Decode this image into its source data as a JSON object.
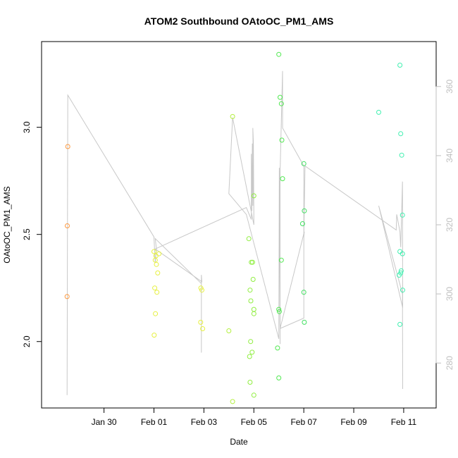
{
  "chart_data": {
    "type": "scatter",
    "title": "ATOM2 Southbound OAtoOC_PM1_AMS",
    "xlabel": "Date",
    "ylabel": "OAtoOC_PM1_AMS",
    "x_unit": "days",
    "xlim": [
      27.5,
      43.3
    ],
    "ylim": [
      1.69,
      3.4
    ],
    "x_ticks": [
      {
        "value": 30,
        "label": "Jan 30"
      },
      {
        "value": 32,
        "label": "Feb 01"
      },
      {
        "value": 34,
        "label": "Feb 03"
      },
      {
        "value": 36,
        "label": "Feb 05"
      },
      {
        "value": 38,
        "label": "Feb 07"
      },
      {
        "value": 40,
        "label": "Feb 09"
      },
      {
        "value": 42,
        "label": "Feb 11"
      }
    ],
    "y_ticks": [
      {
        "value": 2.0,
        "label": "2.0"
      },
      {
        "value": 2.5,
        "label": "2.5"
      },
      {
        "value": 3.0,
        "label": "3.0"
      }
    ],
    "right_axis": {
      "ylim": [
        267,
        373
      ],
      "ticks": [
        {
          "value": 280,
          "label": "280"
        },
        {
          "value": 300,
          "label": "300"
        },
        {
          "value": 320,
          "label": "320"
        },
        {
          "value": 340,
          "label": "340"
        },
        {
          "value": 360,
          "label": "360"
        }
      ],
      "color": "#bfbfbf"
    },
    "grid": false,
    "legend": "none",
    "points": [
      {
        "x": 28.55,
        "y": 2.91,
        "color": "#ff9a40"
      },
      {
        "x": 28.53,
        "y": 2.54,
        "color": "#ff9a40"
      },
      {
        "x": 28.52,
        "y": 2.21,
        "color": "#ff9a40"
      },
      {
        "x": 32.0,
        "y": 2.42,
        "color": "#e6f040"
      },
      {
        "x": 32.05,
        "y": 2.38,
        "color": "#e6f040"
      },
      {
        "x": 32.1,
        "y": 2.36,
        "color": "#e6f040"
      },
      {
        "x": 32.15,
        "y": 2.32,
        "color": "#e6f040"
      },
      {
        "x": 32.08,
        "y": 2.4,
        "color": "#e6f040"
      },
      {
        "x": 32.2,
        "y": 2.41,
        "color": "#e6f040"
      },
      {
        "x": 32.03,
        "y": 2.25,
        "color": "#e6f040"
      },
      {
        "x": 32.12,
        "y": 2.23,
        "color": "#e6f040"
      },
      {
        "x": 32.06,
        "y": 2.13,
        "color": "#e6f040"
      },
      {
        "x": 32.01,
        "y": 2.03,
        "color": "#e6f040"
      },
      {
        "x": 33.88,
        "y": 2.25,
        "color": "#e6f040"
      },
      {
        "x": 33.92,
        "y": 2.24,
        "color": "#e6f040"
      },
      {
        "x": 33.87,
        "y": 2.09,
        "color": "#e6f040"
      },
      {
        "x": 33.95,
        "y": 2.06,
        "color": "#e6f040"
      },
      {
        "x": 35.0,
        "y": 2.05,
        "color": "#b4f040"
      },
      {
        "x": 35.15,
        "y": 3.05,
        "color": "#b4f040"
      },
      {
        "x": 35.15,
        "y": 1.72,
        "color": "#b4f040"
      },
      {
        "x": 35.8,
        "y": 2.48,
        "color": "#90ee40"
      },
      {
        "x": 35.85,
        "y": 2.24,
        "color": "#90ee40"
      },
      {
        "x": 35.88,
        "y": 2.19,
        "color": "#90ee40"
      },
      {
        "x": 35.9,
        "y": 2.37,
        "color": "#90ee40"
      },
      {
        "x": 35.95,
        "y": 2.37,
        "color": "#90ee40"
      },
      {
        "x": 35.97,
        "y": 2.29,
        "color": "#90ee40"
      },
      {
        "x": 36.0,
        "y": 2.15,
        "color": "#90ee40"
      },
      {
        "x": 36.0,
        "y": 2.13,
        "color": "#90ee40"
      },
      {
        "x": 35.87,
        "y": 2.0,
        "color": "#90ee40"
      },
      {
        "x": 35.93,
        "y": 1.95,
        "color": "#90ee40"
      },
      {
        "x": 35.83,
        "y": 1.93,
        "color": "#90ee40"
      },
      {
        "x": 35.85,
        "y": 1.81,
        "color": "#90ee40"
      },
      {
        "x": 36.0,
        "y": 1.75,
        "color": "#90ee40"
      },
      {
        "x": 36.0,
        "y": 2.68,
        "color": "#90ee40"
      },
      {
        "x": 37.0,
        "y": 3.34,
        "color": "#50e850"
      },
      {
        "x": 37.05,
        "y": 3.14,
        "color": "#50e850"
      },
      {
        "x": 37.1,
        "y": 3.11,
        "color": "#50e850"
      },
      {
        "x": 37.12,
        "y": 2.94,
        "color": "#50e850"
      },
      {
        "x": 37.15,
        "y": 2.76,
        "color": "#50e850"
      },
      {
        "x": 37.1,
        "y": 2.38,
        "color": "#50e850"
      },
      {
        "x": 37.0,
        "y": 2.15,
        "color": "#50e850"
      },
      {
        "x": 37.02,
        "y": 2.14,
        "color": "#50e850"
      },
      {
        "x": 36.95,
        "y": 1.97,
        "color": "#50e850"
      },
      {
        "x": 37.0,
        "y": 1.83,
        "color": "#50e850"
      },
      {
        "x": 38.0,
        "y": 2.83,
        "color": "#40e060"
      },
      {
        "x": 38.02,
        "y": 2.61,
        "color": "#40e060"
      },
      {
        "x": 37.95,
        "y": 2.55,
        "color": "#40e060"
      },
      {
        "x": 38.0,
        "y": 2.23,
        "color": "#40e060"
      },
      {
        "x": 38.02,
        "y": 2.09,
        "color": "#40e060"
      },
      {
        "x": 41.0,
        "y": 3.07,
        "color": "#40f0b0"
      },
      {
        "x": 41.85,
        "y": 3.29,
        "color": "#40f0b0"
      },
      {
        "x": 41.88,
        "y": 2.97,
        "color": "#40f0b0"
      },
      {
        "x": 41.92,
        "y": 2.87,
        "color": "#40f0b0"
      },
      {
        "x": 41.95,
        "y": 2.59,
        "color": "#40f0b0"
      },
      {
        "x": 41.85,
        "y": 2.42,
        "color": "#40f0b0"
      },
      {
        "x": 41.95,
        "y": 2.41,
        "color": "#40f0b0"
      },
      {
        "x": 41.9,
        "y": 2.33,
        "color": "#40f0b0"
      },
      {
        "x": 41.82,
        "y": 2.31,
        "color": "#40f0b0"
      },
      {
        "x": 41.88,
        "y": 2.32,
        "color": "#40f0b0"
      },
      {
        "x": 41.96,
        "y": 2.24,
        "color": "#40f0b0"
      },
      {
        "x": 41.85,
        "y": 2.08,
        "color": "#40f0b0"
      }
    ],
    "track_series": {
      "axis": "right",
      "color": "#c8c8c8",
      "points": [
        [
          28.52,
          270.7
        ],
        [
          28.55,
          357.5
        ],
        [
          32.0,
          316.5
        ],
        [
          32.05,
          309.0
        ],
        [
          32.1,
          313.0
        ],
        [
          32.05,
          316.0
        ],
        [
          33.9,
          303.0
        ],
        [
          33.9,
          300.0
        ],
        [
          33.9,
          283.0
        ],
        [
          33.9,
          305.5
        ],
        [
          33.92,
          303.5
        ],
        [
          32.05,
          313.0
        ],
        [
          35.7,
          325.0
        ],
        [
          35.9,
          321.5
        ],
        [
          35.9,
          340.5
        ],
        [
          35.92,
          324.0
        ],
        [
          35.94,
          343.5
        ],
        [
          35.96,
          325.5
        ],
        [
          35.98,
          344.5
        ],
        [
          36.0,
          322.0
        ],
        [
          35.96,
          348.0
        ],
        [
          35.98,
          344.0
        ],
        [
          36.0,
          320.0
        ],
        [
          35.15,
          351.0
        ],
        [
          35.0,
          329.0
        ],
        [
          35.7,
          323.0
        ],
        [
          37.0,
          287.0
        ],
        [
          37.02,
          336.5
        ],
        [
          37.05,
          285.5
        ],
        [
          37.05,
          335.0
        ],
        [
          37.15,
          364.5
        ],
        [
          37.15,
          348.0
        ],
        [
          38.0,
          337.0
        ],
        [
          38.0,
          293.0
        ],
        [
          37.05,
          290.0
        ],
        [
          38.02,
          318.0
        ],
        [
          38.0,
          316.5
        ],
        [
          38.05,
          337.0
        ],
        [
          41.7,
          318.5
        ],
        [
          41.72,
          323.0
        ],
        [
          41.85,
          318.0
        ],
        [
          41.88,
          313.5
        ],
        [
          41.95,
          332.5
        ],
        [
          41.96,
          296.0
        ],
        [
          41.0,
          325.5
        ],
        [
          41.95,
          300.0
        ],
        [
          41.96,
          272.5
        ]
      ]
    }
  }
}
